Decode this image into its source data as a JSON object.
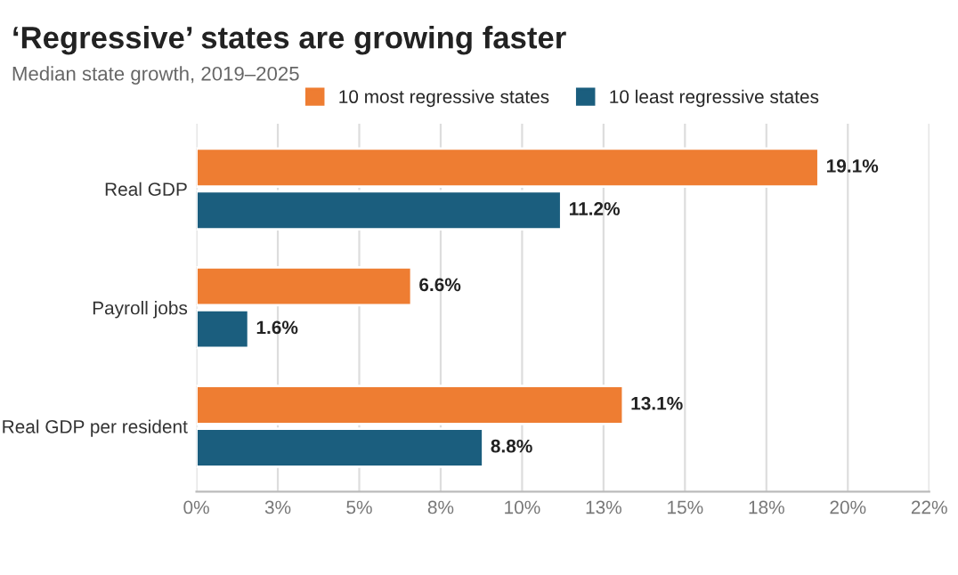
{
  "chart_data": {
    "type": "bar",
    "orientation": "horizontal",
    "title": "‘Regressive’ states are growing faster",
    "subtitle": "Median state growth, 2019–2025",
    "categories": [
      "Real GDP",
      "Payroll jobs",
      "Real GDP per resident"
    ],
    "series": [
      {
        "name": "10 most regressive states",
        "color": "#ee7d32",
        "values": [
          19.1,
          6.6,
          13.1
        ],
        "value_labels": [
          "19.1%",
          "6.6%",
          "13.1%"
        ]
      },
      {
        "name": "10 least regressive states",
        "color": "#1b5e7e",
        "values": [
          11.2,
          1.6,
          8.8
        ],
        "value_labels": [
          "11.2%",
          "1.6%",
          "8.8%"
        ]
      }
    ],
    "xlim": [
      0,
      22.5
    ],
    "xticks": [
      {
        "value": 0,
        "label": "0%"
      },
      {
        "value": 2.5,
        "label": "3%"
      },
      {
        "value": 5,
        "label": "5%"
      },
      {
        "value": 7.5,
        "label": "8%"
      },
      {
        "value": 10,
        "label": "10%"
      },
      {
        "value": 12.5,
        "label": "13%"
      },
      {
        "value": 15,
        "label": "15%"
      },
      {
        "value": 17.5,
        "label": "18%"
      },
      {
        "value": 20,
        "label": "20%"
      },
      {
        "value": 22.5,
        "label": "22%"
      }
    ],
    "grid": "x",
    "legend": "top"
  }
}
